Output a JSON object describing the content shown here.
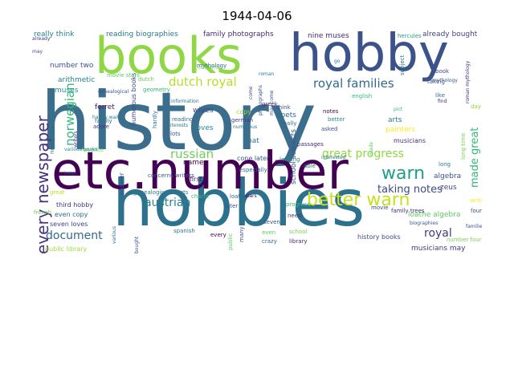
{
  "title": "1944-04-06",
  "words": [
    {
      "text": "history",
      "color": "#3b6d8c"
    },
    {
      "text": "hobbies",
      "color": "#2c728e"
    },
    {
      "text": "etc.number",
      "color": "#440154"
    },
    {
      "text": "books",
      "color": "#8fd744"
    },
    {
      "text": "hobby",
      "color": "#3b528b"
    },
    {
      "text": "every newspaper",
      "color": "#46327e"
    },
    {
      "text": "better warn",
      "color": "#c8e020"
    },
    {
      "text": "warn",
      "color": "#1f9e89"
    },
    {
      "text": "royal families",
      "color": "#31688e"
    },
    {
      "text": "dutch royal",
      "color": "#b5de2b"
    },
    {
      "text": "norwegian",
      "color": "#35b779"
    },
    {
      "text": "russian",
      "color": "#6ece58"
    },
    {
      "text": "austrian",
      "color": "#26828e"
    },
    {
      "text": "great progress",
      "color": "#90d743"
    },
    {
      "text": "document",
      "color": "#31688e"
    },
    {
      "text": "taking notes",
      "color": "#3e4989"
    },
    {
      "text": "royal",
      "color": "#443983"
    },
    {
      "text": "made great",
      "color": "#35b779"
    },
    {
      "text": "reading biographies",
      "color": "#2a788e"
    },
    {
      "text": "family photographs",
      "color": "#482878"
    },
    {
      "text": "nine muses",
      "color": "#482878"
    },
    {
      "text": "already bought",
      "color": "#414487"
    },
    {
      "text": "really think",
      "color": "#26828e"
    },
    {
      "text": "hercules",
      "color": "#1f9e89"
    },
    {
      "text": "arithmetic",
      "color": "#25848e"
    },
    {
      "text": "number two",
      "color": "#3b528b"
    },
    {
      "text": "muses",
      "color": "#21918c"
    },
    {
      "text": "ferret",
      "color": "#471365"
    },
    {
      "text": "musicians may",
      "color": "#443983"
    },
    {
      "text": "public library",
      "color": "#a0da39"
    },
    {
      "text": "seven loves",
      "color": "#414487"
    },
    {
      "text": "even copy",
      "color": "#31688e"
    },
    {
      "text": "third hobby",
      "color": "#46337e"
    },
    {
      "text": "loathe algebra",
      "color": "#5ec962"
    },
    {
      "text": "algebra",
      "color": "#3b528b"
    },
    {
      "text": "zeus",
      "color": "#3e4989"
    },
    {
      "text": "musicians",
      "color": "#472d7b"
    },
    {
      "text": "painters",
      "color": "#fde725"
    },
    {
      "text": "arts",
      "color": "#287c8e"
    },
    {
      "text": "poets",
      "color": "#2e6e8e"
    },
    {
      "text": "cone later",
      "color": "#3b528b"
    },
    {
      "text": "loves",
      "color": "#228c8d"
    },
    {
      "text": "wives",
      "color": "#3e4a89"
    },
    {
      "text": "name",
      "color": "#440154"
    },
    {
      "text": "first",
      "color": "#481467"
    },
    {
      "text": "answer",
      "color": "#3b528b"
    },
    {
      "text": "pat",
      "color": "#2a788e"
    },
    {
      "text": "copy",
      "color": "#9fda3a"
    },
    {
      "text": "mythology",
      "color": "#31688e"
    },
    {
      "text": "numerous books",
      "color": "#3f4889"
    },
    {
      "text": "geometry",
      "color": "#35b779"
    },
    {
      "text": "reading",
      "color": "#2f6c8e"
    },
    {
      "text": "dutch",
      "color": "#6ece58"
    },
    {
      "text": "movie stars",
      "color": "#5ec962"
    },
    {
      "text": "school subjects",
      "color": "#3b528b"
    },
    {
      "text": "subject",
      "color": "#2c728e"
    },
    {
      "text": "roman mythology",
      "color": "#46337e"
    },
    {
      "text": "family trees",
      "color": "#472c7a"
    },
    {
      "text": "great",
      "color": "#b8de29"
    },
    {
      "text": "genealogical charts",
      "color": "#2a788e"
    },
    {
      "text": "progress",
      "color": "#35b779"
    },
    {
      "text": "history books",
      "color": "#3e4a89"
    },
    {
      "text": "biographies",
      "color": "#3b528b"
    },
    {
      "text": "number four",
      "color": "#7ad151"
    },
    {
      "text": "favorite",
      "color": "#6ece58"
    },
    {
      "text": "various books",
      "color": "#26828e"
    },
    {
      "text": "newspaper",
      "color": "#2c728e"
    },
    {
      "text": "concerns writers",
      "color": "#3b528b"
    },
    {
      "text": "hardly wait",
      "color": "#2a788e"
    },
    {
      "text": "family",
      "color": "#2e6f8e"
    },
    {
      "text": "adore",
      "color": "#46337e"
    },
    {
      "text": "hardly",
      "color": "#2c728e"
    },
    {
      "text": "interests",
      "color": "#2a788e"
    },
    {
      "text": "lots",
      "color": "#3b528b"
    },
    {
      "text": "german",
      "color": "#433e85"
    },
    {
      "text": "greek",
      "color": "#482878"
    },
    {
      "text": "think",
      "color": "#3b528b"
    },
    {
      "text": "really",
      "color": "#31688e"
    },
    {
      "text": "asked",
      "color": "#3b528b"
    },
    {
      "text": "better",
      "color": "#21918c"
    },
    {
      "text": "notes",
      "color": "#440154"
    },
    {
      "text": "like",
      "color": "#2c728e"
    },
    {
      "text": "english",
      "color": "#35b779"
    },
    {
      "text": "taking",
      "color": "#3b528b"
    },
    {
      "text": "book",
      "color": "#3f4889"
    },
    {
      "text": "find",
      "color": "#482878"
    },
    {
      "text": "day",
      "color": "#8fd744"
    },
    {
      "text": "long",
      "color": "#287c8e"
    },
    {
      "text": "writing",
      "color": "#fde725"
    },
    {
      "text": "four",
      "color": "#3b528b"
    },
    {
      "text": "movie",
      "color": "#3e4989"
    },
    {
      "text": "even",
      "color": "#5ec962"
    },
    {
      "text": "crazy",
      "color": "#31688e"
    },
    {
      "text": "seven",
      "color": "#3b528b"
    },
    {
      "text": "need",
      "color": "#443983"
    },
    {
      "text": "library",
      "color": "#482878"
    },
    {
      "text": "school",
      "color": "#7ad151"
    },
    {
      "text": "loathe",
      "color": "#31688e"
    },
    {
      "text": "stars",
      "color": "#440154"
    },
    {
      "text": "charts",
      "color": "#35b779"
    },
    {
      "text": "later",
      "color": "#3b528b"
    },
    {
      "text": "spanish",
      "color": "#2a788e"
    },
    {
      "text": "every",
      "color": "#440154"
    },
    {
      "text": "many",
      "color": "#3b528b"
    },
    {
      "text": "public",
      "color": "#5ec962"
    },
    {
      "text": "especially",
      "color": "#31688e"
    },
    {
      "text": "looking",
      "color": "#26828e"
    },
    {
      "text": "passages",
      "color": "#482878"
    },
    {
      "text": "able",
      "color": "#2a788e"
    },
    {
      "text": "french",
      "color": "#6ece58"
    },
    {
      "text": "trees",
      "color": "#414487"
    },
    {
      "text": "various",
      "color": "#2c728e"
    },
    {
      "text": "bought",
      "color": "#3b528b"
    },
    {
      "text": "long time",
      "color": "#7ad151"
    },
    {
      "text": "already",
      "color": "#443983"
    },
    {
      "text": "may",
      "color": "#3b528b"
    },
    {
      "text": "go",
      "color": "#2a788e"
    },
    {
      "text": "made",
      "color": "#5ec962"
    },
    {
      "text": "photographs",
      "color": "#3b528b"
    },
    {
      "text": "interested",
      "color": "#2a788e"
    },
    {
      "text": "pict",
      "color": "#35b779"
    },
    {
      "text": "families",
      "color": "#3b528b"
    },
    {
      "text": "roman",
      "color": "#2a788e"
    },
    {
      "text": "come",
      "color": "#3e4989"
    },
    {
      "text": "may come",
      "color": "#3b528b"
    },
    {
      "text": "information",
      "color": "#2c728e"
    },
    {
      "text": "writers",
      "color": "#46327e"
    },
    {
      "text": "genealogical",
      "color": "#3b528b"
    },
    {
      "text": "numerous",
      "color": "#2a788e"
    },
    {
      "text": "concerns",
      "color": "#6ece58"
    },
    {
      "text": "mythology",
      "color": "#3b528b"
    },
    {
      "text": "book",
      "color": "#482878"
    }
  ]
}
